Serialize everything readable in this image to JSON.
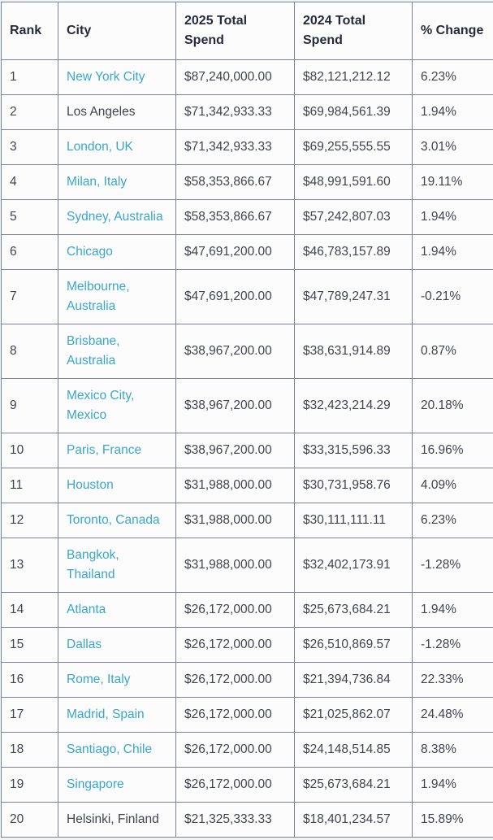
{
  "table": {
    "name": "city-total-spend-comparison",
    "columns": [
      {
        "key": "rank",
        "label": "Rank"
      },
      {
        "key": "city",
        "label": "City"
      },
      {
        "key": "spend_2025",
        "label": "2025 Total Spend"
      },
      {
        "key": "spend_2024",
        "label": "2024 Total Spend"
      },
      {
        "key": "pct_change",
        "label": "% Change"
      }
    ],
    "rows": [
      {
        "rank": "1",
        "city": "New York City",
        "city_is_link": true,
        "spend_2025": "$87,240,000.00",
        "spend_2024": "$82,121,212.12",
        "pct_change": "6.23%"
      },
      {
        "rank": "2",
        "city": "Los Angeles",
        "city_is_link": false,
        "spend_2025": "$71,342,933.33",
        "spend_2024": "$69,984,561.39",
        "pct_change": "1.94%"
      },
      {
        "rank": "3",
        "city": "London, UK",
        "city_is_link": true,
        "spend_2025": "$71,342,933.33",
        "spend_2024": "$69,255,555.55",
        "pct_change": "3.01%"
      },
      {
        "rank": "4",
        "city": "Milan, Italy",
        "city_is_link": true,
        "spend_2025": "$58,353,866.67",
        "spend_2024": "$48,991,591.60",
        "pct_change": "19.11%"
      },
      {
        "rank": "5",
        "city": "Sydney, Australia",
        "city_is_link": true,
        "spend_2025": "$58,353,866.67",
        "spend_2024": "$57,242,807.03",
        "pct_change": "1.94%"
      },
      {
        "rank": "6",
        "city": "Chicago",
        "city_is_link": true,
        "spend_2025": "$47,691,200.00",
        "spend_2024": "$46,783,157.89",
        "pct_change": "1.94%"
      },
      {
        "rank": "7",
        "city": "Melbourne,\nAustralia",
        "city_is_link": true,
        "spend_2025": "$47,691,200.00",
        "spend_2024": "$47,789,247.31",
        "pct_change": "-0.21%"
      },
      {
        "rank": "8",
        "city": "Brisbane,\nAustralia",
        "city_is_link": true,
        "spend_2025": "$38,967,200.00",
        "spend_2024": "$38,631,914.89",
        "pct_change": "0.87%"
      },
      {
        "rank": "9",
        "city": "Mexico City,\nMexico",
        "city_is_link": true,
        "spend_2025": "$38,967,200.00",
        "spend_2024": "$32,423,214.29",
        "pct_change": "20.18%"
      },
      {
        "rank": "10",
        "city": "Paris, France",
        "city_is_link": true,
        "spend_2025": "$38,967,200.00",
        "spend_2024": "$33,315,596.33",
        "pct_change": "16.96%"
      },
      {
        "rank": "11",
        "city": "Houston",
        "city_is_link": true,
        "spend_2025": "$31,988,000.00",
        "spend_2024": "$30,731,958.76",
        "pct_change": "4.09%"
      },
      {
        "rank": "12",
        "city": "Toronto, Canada",
        "city_is_link": true,
        "spend_2025": "$31,988,000.00",
        "spend_2024": "$30,111,111.11",
        "pct_change": "6.23%"
      },
      {
        "rank": "13",
        "city": "Bangkok,\nThailand",
        "city_is_link": true,
        "spend_2025": "$31,988,000.00",
        "spend_2024": "$32,402,173.91",
        "pct_change": "-1.28%"
      },
      {
        "rank": "14",
        "city": "Atlanta",
        "city_is_link": true,
        "spend_2025": "$26,172,000.00",
        "spend_2024": "$25,673,684.21",
        "pct_change": "1.94%"
      },
      {
        "rank": "15",
        "city": "Dallas",
        "city_is_link": true,
        "spend_2025": "$26,172,000.00",
        "spend_2024": "$26,510,869.57",
        "pct_change": "-1.28%"
      },
      {
        "rank": "16",
        "city": "Rome, Italy",
        "city_is_link": true,
        "spend_2025": "$26,172,000.00",
        "spend_2024": "$21,394,736.84",
        "pct_change": "22.33%"
      },
      {
        "rank": "17",
        "city": "Madrid, Spain",
        "city_is_link": true,
        "spend_2025": "$26,172,000.00",
        "spend_2024": "$21,025,862.07",
        "pct_change": "24.48%"
      },
      {
        "rank": "18",
        "city": "Santiago, Chile",
        "city_is_link": true,
        "spend_2025": "$26,172,000.00",
        "spend_2024": "$24,148,514.85",
        "pct_change": "8.38%"
      },
      {
        "rank": "19",
        "city": "Singapore",
        "city_is_link": true,
        "spend_2025": "$26,172,000.00",
        "spend_2024": "$25,673,684.21",
        "pct_change": "1.94%"
      },
      {
        "rank": "20",
        "city": "Helsinki, Finland",
        "city_is_link": false,
        "spend_2025": "$21,325,333.33",
        "spend_2024": "$18,401,234.57",
        "pct_change": "15.89%"
      }
    ]
  },
  "colors": {
    "link_text": "#39a7cc",
    "header_text": "#252b3b",
    "body_text": "#40444f",
    "border": "#7d8393",
    "cell_background": "#fcfcfd",
    "page_background": "#f2f3f5"
  }
}
